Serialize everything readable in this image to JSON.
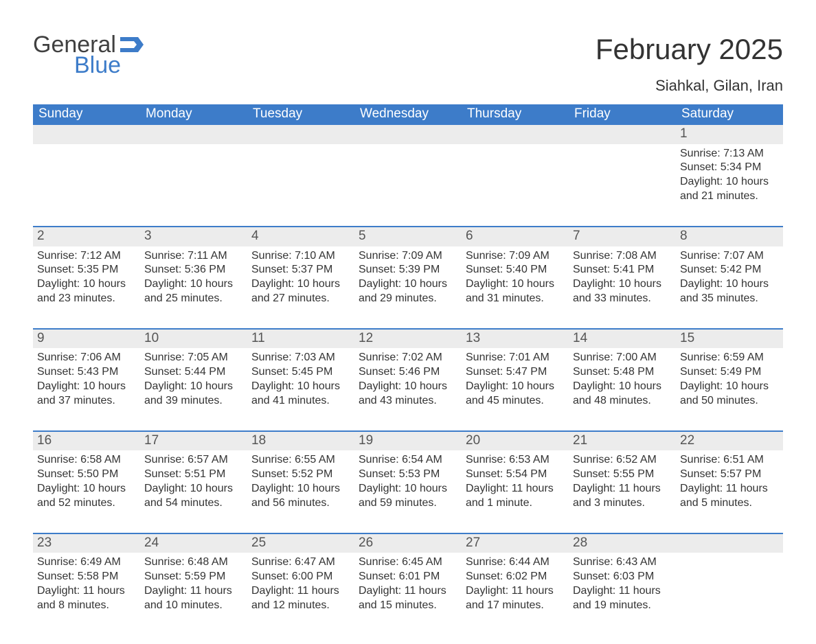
{
  "logo": {
    "word1": "General",
    "word2": "Blue",
    "flag_color": "#3d7cc9"
  },
  "title": "February 2025",
  "location": "Siahkal, Gilan, Iran",
  "colors": {
    "header_bg": "#3d7cc9",
    "header_text": "#ffffff",
    "row_separator": "#3d7cc9",
    "daynum_bg": "#ececec",
    "body_text": "#333333",
    "background": "#ffffff"
  },
  "fonts": {
    "title_pt": 42,
    "location_pt": 22,
    "weekday_pt": 19,
    "daynum_pt": 19,
    "body_pt": 16
  },
  "weekdays": [
    "Sunday",
    "Monday",
    "Tuesday",
    "Wednesday",
    "Thursday",
    "Friday",
    "Saturday"
  ],
  "weeks": [
    [
      null,
      null,
      null,
      null,
      null,
      null,
      {
        "n": "1",
        "sunrise": "Sunrise: 7:13 AM",
        "sunset": "Sunset: 5:34 PM",
        "daylight1": "Daylight: 10 hours",
        "daylight2": "and 21 minutes."
      }
    ],
    [
      {
        "n": "2",
        "sunrise": "Sunrise: 7:12 AM",
        "sunset": "Sunset: 5:35 PM",
        "daylight1": "Daylight: 10 hours",
        "daylight2": "and 23 minutes."
      },
      {
        "n": "3",
        "sunrise": "Sunrise: 7:11 AM",
        "sunset": "Sunset: 5:36 PM",
        "daylight1": "Daylight: 10 hours",
        "daylight2": "and 25 minutes."
      },
      {
        "n": "4",
        "sunrise": "Sunrise: 7:10 AM",
        "sunset": "Sunset: 5:37 PM",
        "daylight1": "Daylight: 10 hours",
        "daylight2": "and 27 minutes."
      },
      {
        "n": "5",
        "sunrise": "Sunrise: 7:09 AM",
        "sunset": "Sunset: 5:39 PM",
        "daylight1": "Daylight: 10 hours",
        "daylight2": "and 29 minutes."
      },
      {
        "n": "6",
        "sunrise": "Sunrise: 7:09 AM",
        "sunset": "Sunset: 5:40 PM",
        "daylight1": "Daylight: 10 hours",
        "daylight2": "and 31 minutes."
      },
      {
        "n": "7",
        "sunrise": "Sunrise: 7:08 AM",
        "sunset": "Sunset: 5:41 PM",
        "daylight1": "Daylight: 10 hours",
        "daylight2": "and 33 minutes."
      },
      {
        "n": "8",
        "sunrise": "Sunrise: 7:07 AM",
        "sunset": "Sunset: 5:42 PM",
        "daylight1": "Daylight: 10 hours",
        "daylight2": "and 35 minutes."
      }
    ],
    [
      {
        "n": "9",
        "sunrise": "Sunrise: 7:06 AM",
        "sunset": "Sunset: 5:43 PM",
        "daylight1": "Daylight: 10 hours",
        "daylight2": "and 37 minutes."
      },
      {
        "n": "10",
        "sunrise": "Sunrise: 7:05 AM",
        "sunset": "Sunset: 5:44 PM",
        "daylight1": "Daylight: 10 hours",
        "daylight2": "and 39 minutes."
      },
      {
        "n": "11",
        "sunrise": "Sunrise: 7:03 AM",
        "sunset": "Sunset: 5:45 PM",
        "daylight1": "Daylight: 10 hours",
        "daylight2": "and 41 minutes."
      },
      {
        "n": "12",
        "sunrise": "Sunrise: 7:02 AM",
        "sunset": "Sunset: 5:46 PM",
        "daylight1": "Daylight: 10 hours",
        "daylight2": "and 43 minutes."
      },
      {
        "n": "13",
        "sunrise": "Sunrise: 7:01 AM",
        "sunset": "Sunset: 5:47 PM",
        "daylight1": "Daylight: 10 hours",
        "daylight2": "and 45 minutes."
      },
      {
        "n": "14",
        "sunrise": "Sunrise: 7:00 AM",
        "sunset": "Sunset: 5:48 PM",
        "daylight1": "Daylight: 10 hours",
        "daylight2": "and 48 minutes."
      },
      {
        "n": "15",
        "sunrise": "Sunrise: 6:59 AM",
        "sunset": "Sunset: 5:49 PM",
        "daylight1": "Daylight: 10 hours",
        "daylight2": "and 50 minutes."
      }
    ],
    [
      {
        "n": "16",
        "sunrise": "Sunrise: 6:58 AM",
        "sunset": "Sunset: 5:50 PM",
        "daylight1": "Daylight: 10 hours",
        "daylight2": "and 52 minutes."
      },
      {
        "n": "17",
        "sunrise": "Sunrise: 6:57 AM",
        "sunset": "Sunset: 5:51 PM",
        "daylight1": "Daylight: 10 hours",
        "daylight2": "and 54 minutes."
      },
      {
        "n": "18",
        "sunrise": "Sunrise: 6:55 AM",
        "sunset": "Sunset: 5:52 PM",
        "daylight1": "Daylight: 10 hours",
        "daylight2": "and 56 minutes."
      },
      {
        "n": "19",
        "sunrise": "Sunrise: 6:54 AM",
        "sunset": "Sunset: 5:53 PM",
        "daylight1": "Daylight: 10 hours",
        "daylight2": "and 59 minutes."
      },
      {
        "n": "20",
        "sunrise": "Sunrise: 6:53 AM",
        "sunset": "Sunset: 5:54 PM",
        "daylight1": "Daylight: 11 hours",
        "daylight2": "and 1 minute."
      },
      {
        "n": "21",
        "sunrise": "Sunrise: 6:52 AM",
        "sunset": "Sunset: 5:55 PM",
        "daylight1": "Daylight: 11 hours",
        "daylight2": "and 3 minutes."
      },
      {
        "n": "22",
        "sunrise": "Sunrise: 6:51 AM",
        "sunset": "Sunset: 5:57 PM",
        "daylight1": "Daylight: 11 hours",
        "daylight2": "and 5 minutes."
      }
    ],
    [
      {
        "n": "23",
        "sunrise": "Sunrise: 6:49 AM",
        "sunset": "Sunset: 5:58 PM",
        "daylight1": "Daylight: 11 hours",
        "daylight2": "and 8 minutes."
      },
      {
        "n": "24",
        "sunrise": "Sunrise: 6:48 AM",
        "sunset": "Sunset: 5:59 PM",
        "daylight1": "Daylight: 11 hours",
        "daylight2": "and 10 minutes."
      },
      {
        "n": "25",
        "sunrise": "Sunrise: 6:47 AM",
        "sunset": "Sunset: 6:00 PM",
        "daylight1": "Daylight: 11 hours",
        "daylight2": "and 12 minutes."
      },
      {
        "n": "26",
        "sunrise": "Sunrise: 6:45 AM",
        "sunset": "Sunset: 6:01 PM",
        "daylight1": "Daylight: 11 hours",
        "daylight2": "and 15 minutes."
      },
      {
        "n": "27",
        "sunrise": "Sunrise: 6:44 AM",
        "sunset": "Sunset: 6:02 PM",
        "daylight1": "Daylight: 11 hours",
        "daylight2": "and 17 minutes."
      },
      {
        "n": "28",
        "sunrise": "Sunrise: 6:43 AM",
        "sunset": "Sunset: 6:03 PM",
        "daylight1": "Daylight: 11 hours",
        "daylight2": "and 19 minutes."
      },
      null
    ]
  ]
}
